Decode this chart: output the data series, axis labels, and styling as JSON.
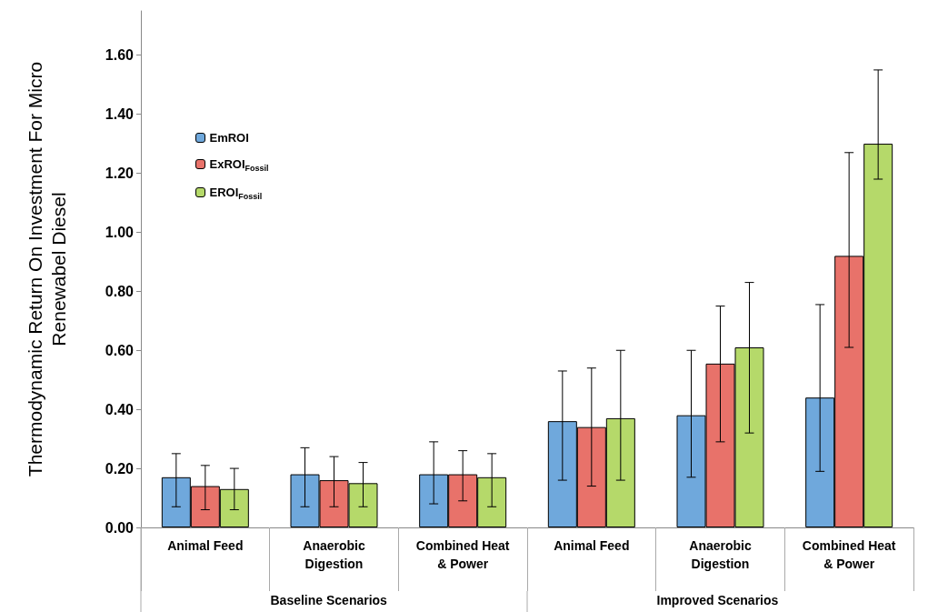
{
  "chart_data": {
    "type": "bar",
    "ylabel": "Thermodynamic Return On Investment For Micro\nRenewabel Diesel",
    "categories": [
      "Animal Feed",
      "Anaerobic\nDigestion",
      "Combined Heat\n& Power",
      "Animal Feed",
      "Anaerobic\nDigestion",
      "Combined Heat\n& Power"
    ],
    "series": [
      {
        "name": "EmROI",
        "color": "#6fa8dc",
        "values": [
          0.17,
          0.18,
          0.18,
          0.36,
          0.38,
          0.44
        ],
        "errors": [
          [
            0.07,
            0.25
          ],
          [
            0.07,
            0.27
          ],
          [
            0.08,
            0.29
          ],
          [
            0.16,
            0.53
          ],
          [
            0.17,
            0.6
          ],
          [
            0.19,
            0.755
          ]
        ]
      },
      {
        "name": "ExROI$_{Fossil}$",
        "color": "#e8726a",
        "values": [
          0.14,
          0.16,
          0.18,
          0.34,
          0.555,
          0.92
        ],
        "errors": [
          [
            0.06,
            0.21
          ],
          [
            0.07,
            0.24
          ],
          [
            0.09,
            0.26
          ],
          [
            0.14,
            0.54
          ],
          [
            0.29,
            0.75
          ],
          [
            0.61,
            1.27
          ]
        ]
      },
      {
        "name": "EROI$_{Fossil}$",
        "color": "#b5d96a",
        "values": [
          0.13,
          0.15,
          0.17,
          0.37,
          0.61,
          1.3
        ],
        "errors": [
          [
            0.06,
            0.2
          ],
          [
            0.07,
            0.22
          ],
          [
            0.07,
            0.25
          ],
          [
            0.16,
            0.6
          ],
          [
            0.32,
            0.83
          ],
          [
            1.18,
            1.55
          ]
        ]
      }
    ],
    "ylim": [
      0,
      1.75
    ],
    "yticks": [
      {
        "value": 0,
        "label": "0.00"
      },
      {
        "value": 0.2,
        "label": "0.20"
      },
      {
        "value": 0.4,
        "label": "0.40"
      },
      {
        "value": 0.6,
        "label": "0.60"
      },
      {
        "value": 0.8,
        "label": "0.80"
      },
      {
        "value": 1,
        "label": "1.00"
      },
      {
        "value": 1.2,
        "label": "1.20"
      },
      {
        "value": 1.4,
        "label": "1.40"
      },
      {
        "value": 1.6,
        "label": "1.60"
      }
    ],
    "annotations": [
      "Baseline Scenarios",
      "Improved Scenarios"
    ],
    "legend": "top left",
    "grid": false
  }
}
